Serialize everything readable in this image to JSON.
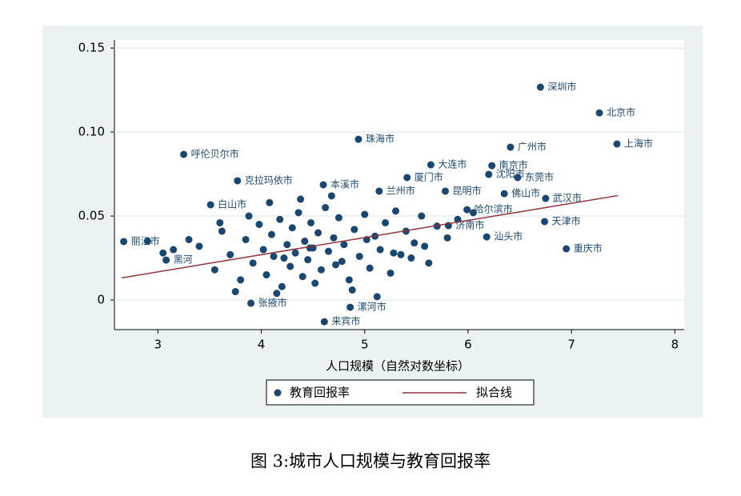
{
  "chart_data": {
    "type": "scatter",
    "x_label": "人口规模（自然对数坐标）",
    "caption": "图 3:城市人口规模与教育回报率",
    "xlim": [
      2.58,
      8.09
    ],
    "ylim": [
      -0.0176,
      0.1548
    ],
    "xticks": [
      3,
      4,
      5,
      6,
      7,
      8
    ],
    "yticks": [
      0,
      0.05,
      {
        "value": 0.1,
        "label": "0.10"
      },
      0.15
    ],
    "grid": true,
    "series": [
      {
        "name": "教育回报率",
        "color": "#1a476f",
        "x": [
          6.7,
          7.27,
          7.44,
          4.94,
          3.25,
          6.41,
          5.64,
          6.23,
          6.2,
          6.48,
          5.41,
          3.77,
          4.6,
          5.78,
          6.75,
          6.35,
          3.51,
          6.74,
          6.18,
          6.95,
          2.67,
          4.61,
          4.86,
          3.9,
          5.81,
          5.99,
          5.14,
          3.08,
          3.4,
          3.55,
          3.62,
          3.7,
          3.8,
          3.85,
          3.92,
          3.98,
          4.02,
          4.05,
          4.1,
          4.12,
          4.18,
          4.2,
          4.25,
          4.28,
          4.3,
          4.33,
          4.36,
          4.4,
          4.42,
          4.45,
          4.48,
          4.5,
          4.52,
          4.55,
          4.58,
          4.62,
          4.65,
          4.7,
          4.72,
          4.75,
          4.8,
          4.85,
          4.9,
          4.95,
          5.0,
          5.05,
          5.1,
          5.15,
          5.2,
          5.25,
          5.3,
          5.35,
          5.4,
          5.48,
          5.55,
          5.62,
          5.7,
          5.8,
          5.9,
          6.05,
          3.15,
          3.3,
          2.9,
          3.05,
          3.6,
          3.75,
          4.08,
          4.15,
          4.38,
          4.68,
          4.88,
          5.12,
          5.45,
          3.88,
          4.22,
          4.47,
          4.78,
          5.02,
          5.28,
          5.58
        ],
        "values": [
          0.1267,
          0.1114,
          0.0929,
          0.0957,
          0.0867,
          0.091,
          0.0805,
          0.08,
          0.0748,
          0.0729,
          0.0729,
          0.071,
          0.0686,
          0.0648,
          0.0605,
          0.0633,
          0.0567,
          0.0467,
          0.0376,
          0.0305,
          0.0348,
          -0.0129,
          -0.0043,
          -0.0019,
          0.0443,
          0.0538,
          0.0648,
          0.0238,
          0.032,
          0.018,
          0.041,
          0.027,
          0.012,
          0.036,
          0.022,
          0.045,
          0.03,
          0.015,
          0.039,
          0.026,
          0.048,
          0.008,
          0.033,
          0.02,
          0.043,
          0.028,
          0.052,
          0.014,
          0.035,
          0.024,
          0.046,
          0.031,
          0.01,
          0.04,
          0.018,
          0.055,
          0.029,
          0.037,
          0.021,
          0.049,
          0.033,
          0.012,
          0.042,
          0.026,
          0.051,
          0.019,
          0.038,
          0.03,
          0.046,
          0.016,
          0.053,
          0.027,
          0.041,
          0.034,
          0.05,
          0.022,
          0.044,
          0.037,
          0.048,
          0.052,
          0.03,
          0.036,
          0.035,
          0.028,
          0.046,
          0.005,
          0.058,
          0.004,
          0.06,
          0.062,
          0.006,
          0.002,
          0.025,
          0.05,
          0.025,
          0.031,
          0.023,
          0.036,
          0.028,
          0.032
        ],
        "labels": [
          "深圳市",
          "北京市",
          "上海市",
          "珠海市",
          "呼伦贝尔市",
          "广州市",
          "大连市",
          "南京市",
          "沈阳市",
          "东莞市",
          "厦门市",
          "克拉玛依市",
          "本溪市",
          "昆明市",
          "武汉市",
          "佛山市",
          "白山市",
          "天津市",
          "汕头市",
          "重庆市",
          "丽江市",
          "来宾市",
          "漯河市",
          "张掖市",
          "济南市",
          "哈尔滨市",
          "兰州市",
          "黑河",
          null,
          null,
          null,
          null,
          null,
          null,
          null,
          null,
          null,
          null,
          null,
          null,
          null,
          null,
          null,
          null,
          null,
          null,
          null,
          null,
          null,
          null,
          null,
          null,
          null,
          null,
          null,
          null,
          null,
          null,
          null,
          null,
          null,
          null,
          null,
          null,
          null,
          null,
          null,
          null,
          null,
          null,
          null,
          null,
          null,
          null,
          null,
          null,
          null,
          null,
          null,
          null,
          null,
          null,
          null,
          null,
          null,
          null,
          null,
          null,
          null,
          null,
          null,
          null,
          null,
          null,
          null,
          null
        ]
      }
    ],
    "fit_line": {
      "name": "拟合线",
      "color": "#90353b",
      "x": [
        2.65,
        7.45
      ],
      "y": [
        0.0132,
        0.0622
      ]
    }
  }
}
